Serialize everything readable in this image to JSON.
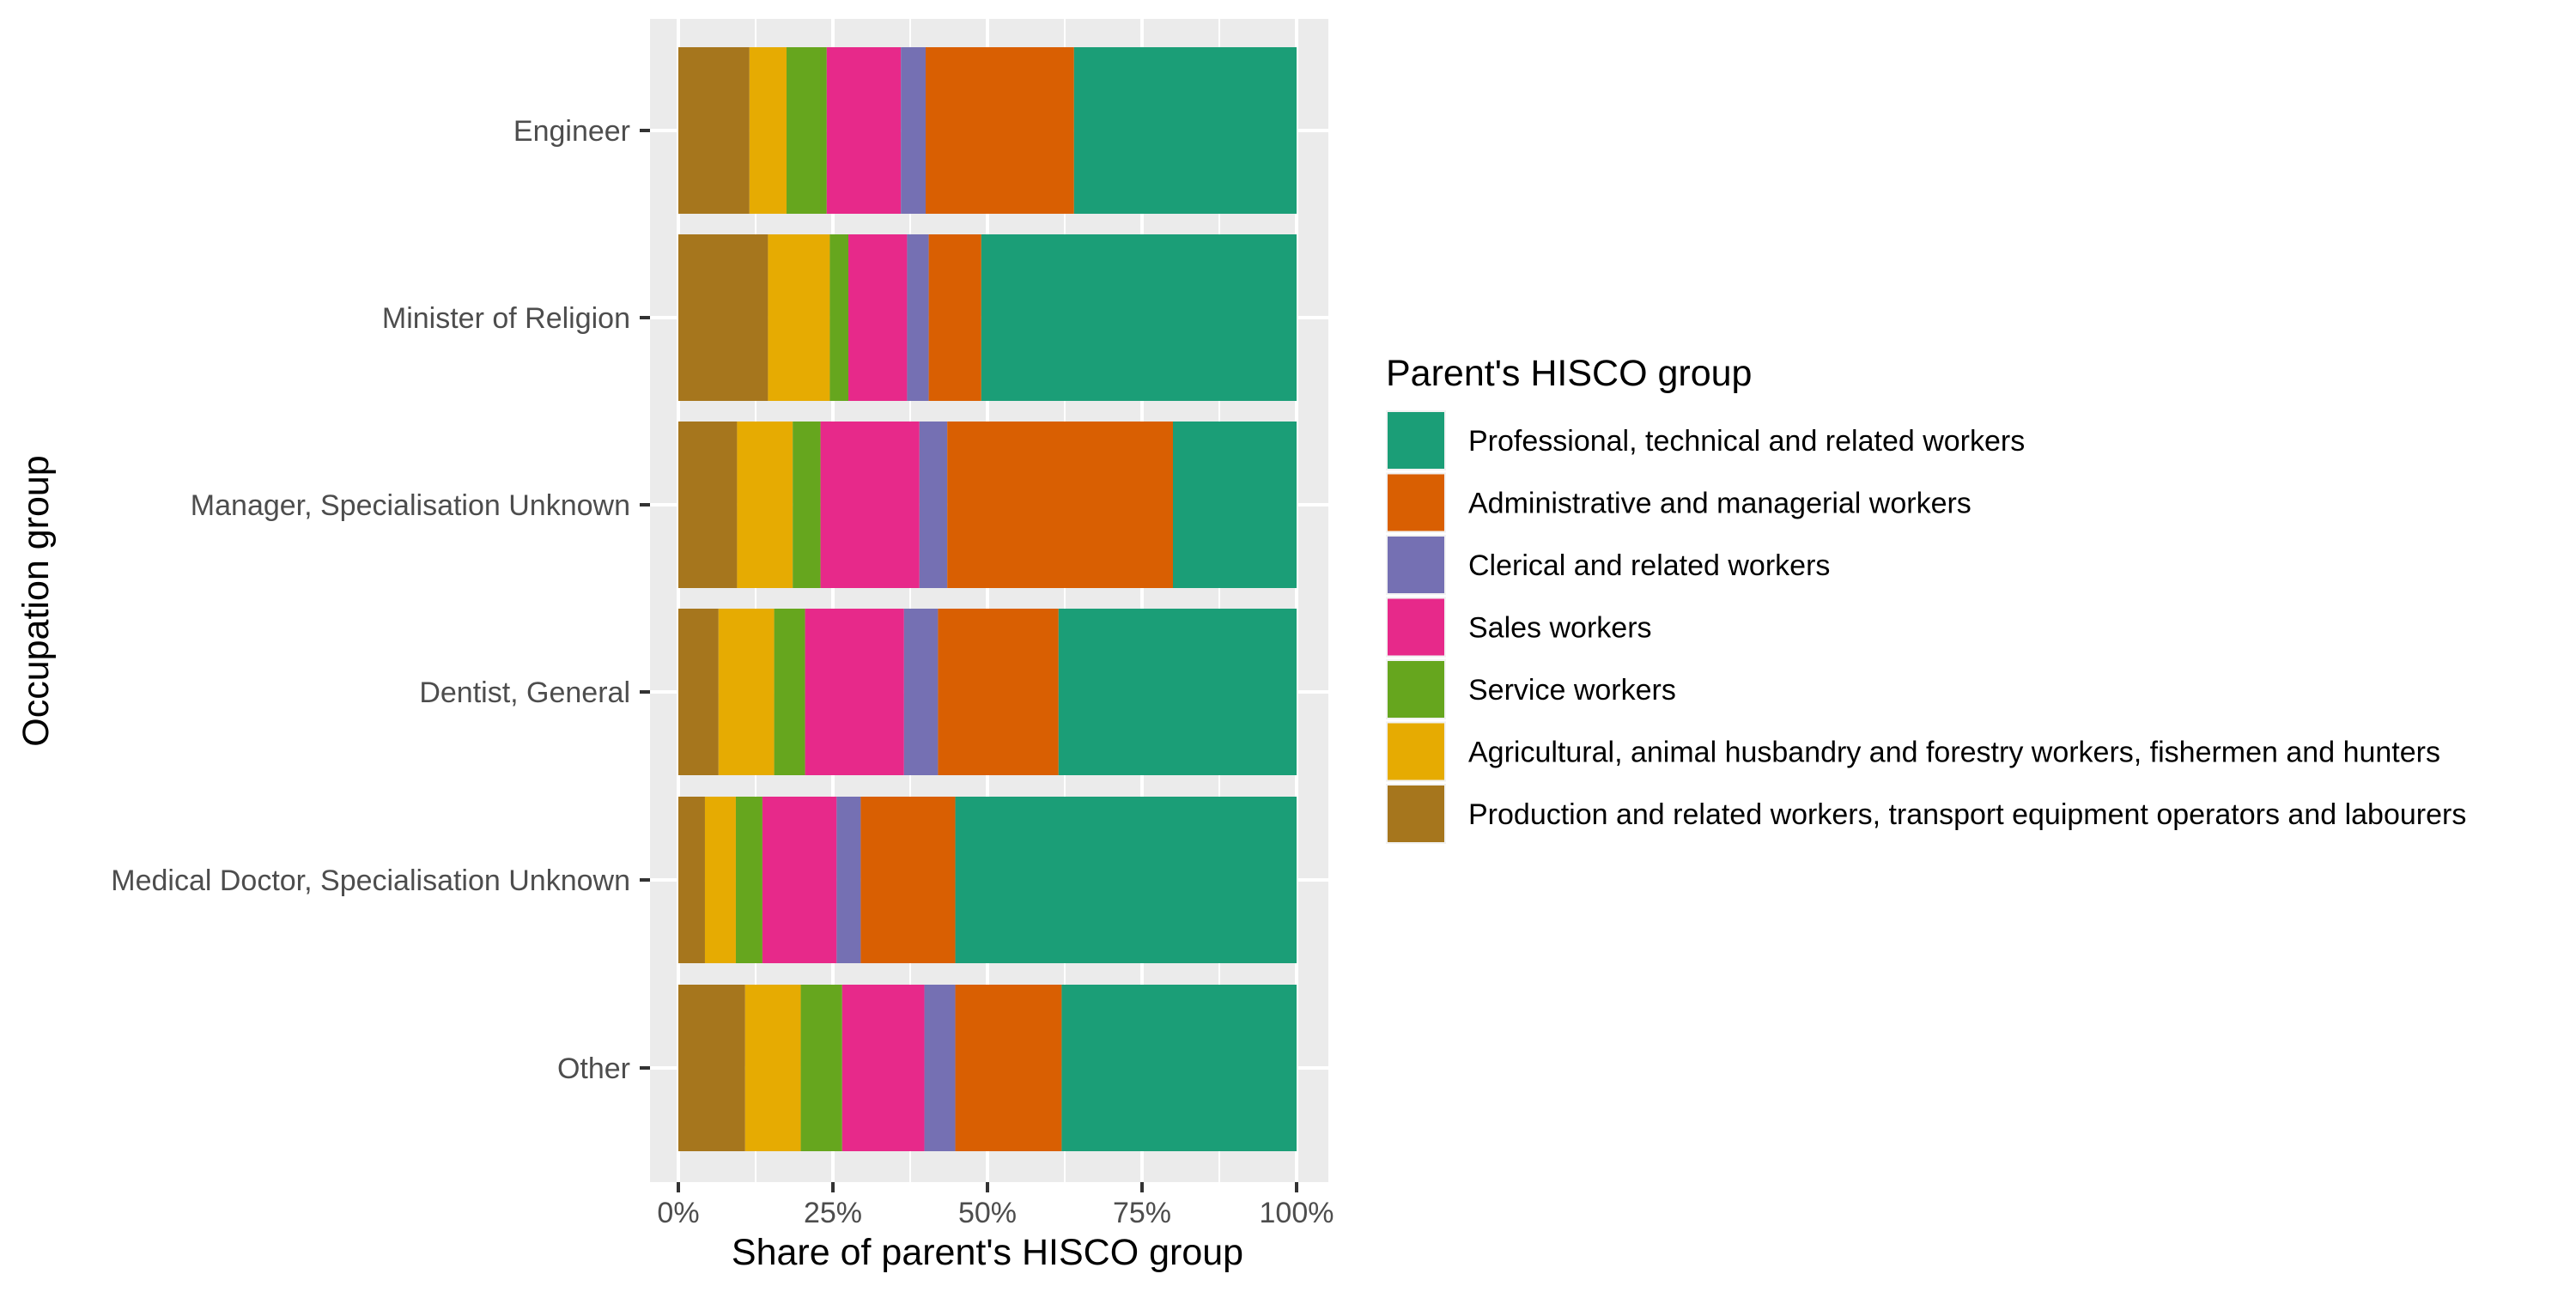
{
  "chart_data": {
    "type": "bar",
    "orientation": "horizontal",
    "stacked": "percent",
    "xlabel": "Share of parent's HISCO group",
    "ylabel": "Occupation group",
    "xlim": [
      0,
      100
    ],
    "x_ticks": [
      0,
      25,
      50,
      75,
      100
    ],
    "x_tick_labels": [
      "0%",
      "25%",
      "50%",
      "75%",
      "100%"
    ],
    "grid": true,
    "legend_position": "right",
    "legend_title": "Parent's HISCO group",
    "categories": [
      "Engineer",
      "Minister of Religion",
      "Manager, Specialisation Unknown",
      "Dentist, General",
      "Medical Doctor, Specialisation Unknown",
      "Other"
    ],
    "series": [
      {
        "name": "Production and related workers, transport equipment operators and labourers",
        "color": "#A6761D",
        "values": [
          11.5,
          14.5,
          9.5,
          6.5,
          4.3,
          10.8
        ]
      },
      {
        "name": "Agricultural, animal husbandry and forestry workers, fishermen and hunters",
        "color": "#E6AB02",
        "values": [
          6.0,
          10.0,
          9.0,
          9.0,
          5.0,
          9.0
        ]
      },
      {
        "name": "Service workers",
        "color": "#66A61E",
        "values": [
          6.5,
          3.0,
          4.5,
          5.0,
          4.3,
          6.7
        ]
      },
      {
        "name": "Sales workers",
        "color": "#E7298A",
        "values": [
          12.0,
          9.5,
          16.0,
          16.0,
          12.0,
          13.3
        ]
      },
      {
        "name": "Clerical and related workers",
        "color": "#7570B3",
        "values": [
          4.0,
          3.5,
          4.5,
          5.5,
          3.9,
          5.0
        ]
      },
      {
        "name": "Administrative and managerial workers",
        "color": "#D95F02",
        "values": [
          24.0,
          8.5,
          36.5,
          19.5,
          15.3,
          17.2
        ]
      },
      {
        "name": "Professional, technical and related workers",
        "color": "#1B9E77",
        "values": [
          36.0,
          51.0,
          20.0,
          38.5,
          55.2,
          38.0
        ]
      }
    ],
    "legend_order": [
      6,
      5,
      4,
      3,
      2,
      1,
      0
    ]
  }
}
